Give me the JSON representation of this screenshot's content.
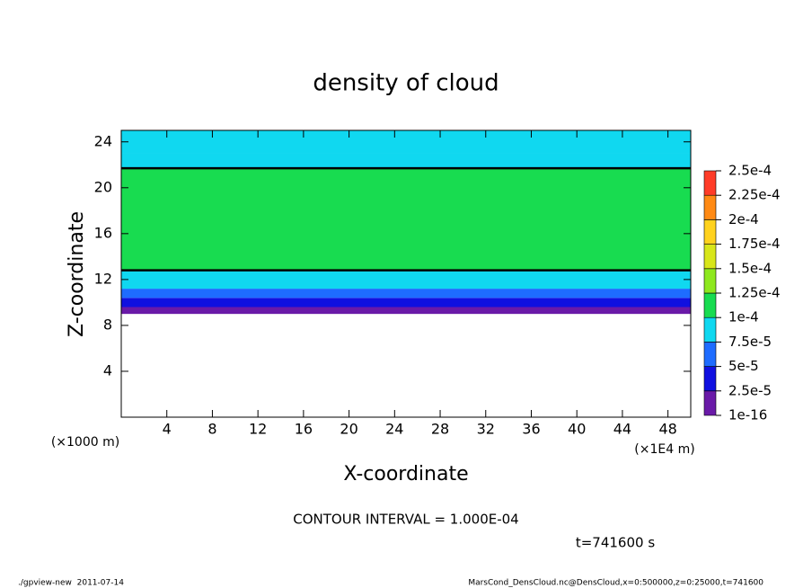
{
  "chart_data": {
    "type": "contour",
    "title": "density of cloud",
    "x_label": "X-coordinate",
    "y_label": "Z-coordinate",
    "y_unit": "(×1000 m)",
    "x_unit": "(×1E4 m)",
    "xlim": [
      0,
      50
    ],
    "xticks": [
      4,
      8,
      12,
      16,
      20,
      24,
      28,
      32,
      36,
      40,
      44,
      48
    ],
    "ylim": [
      0,
      25
    ],
    "yticks": [
      4,
      8,
      12,
      16,
      20,
      24
    ],
    "z_edges": [
      9.0,
      9.6,
      10.4,
      11.2,
      12.8,
      21.7,
      23.0,
      25.0
    ],
    "values": [
      1e-05,
      3.5e-05,
      6e-05,
      8.5e-05,
      0.00011,
      9e-05,
      8e-05
    ],
    "levels": [
      {
        "value": 1e-16,
        "label": "1e-16"
      },
      {
        "value": 2.5e-05,
        "label": "2.5e-5"
      },
      {
        "value": 5e-05,
        "label": "5e-5"
      },
      {
        "value": 7.5e-05,
        "label": "7.5e-5"
      },
      {
        "value": 0.0001,
        "label": "1e-4"
      },
      {
        "value": 0.000125,
        "label": "1.25e-4"
      },
      {
        "value": 0.00015,
        "label": "1.5e-4"
      },
      {
        "value": 0.000175,
        "label": "1.75e-4"
      },
      {
        "value": 0.0002,
        "label": "2e-4"
      },
      {
        "value": 0.000225,
        "label": "2.25e-4"
      },
      {
        "value": 0.00025,
        "label": "2.5e-4"
      }
    ],
    "colors": [
      "#6a1aa8",
      "#1010e0",
      "#1e6cff",
      "#10d8f0",
      "#18dc50",
      "#8ee81e",
      "#d8e61a",
      "#ffd21e",
      "#ff8a14",
      "#ff3c28"
    ],
    "contour_interval": {
      "value": 0.0001,
      "label": "CONTOUR INTERVAL = 1.000E-04"
    },
    "time_label": "t=741600 s",
    "footer_left": "./gpview-new  2011-07-14",
    "footer_right": "MarsCond_DensCloud.nc@DensCloud,x=0:500000,z=0:25000,t=741600"
  }
}
